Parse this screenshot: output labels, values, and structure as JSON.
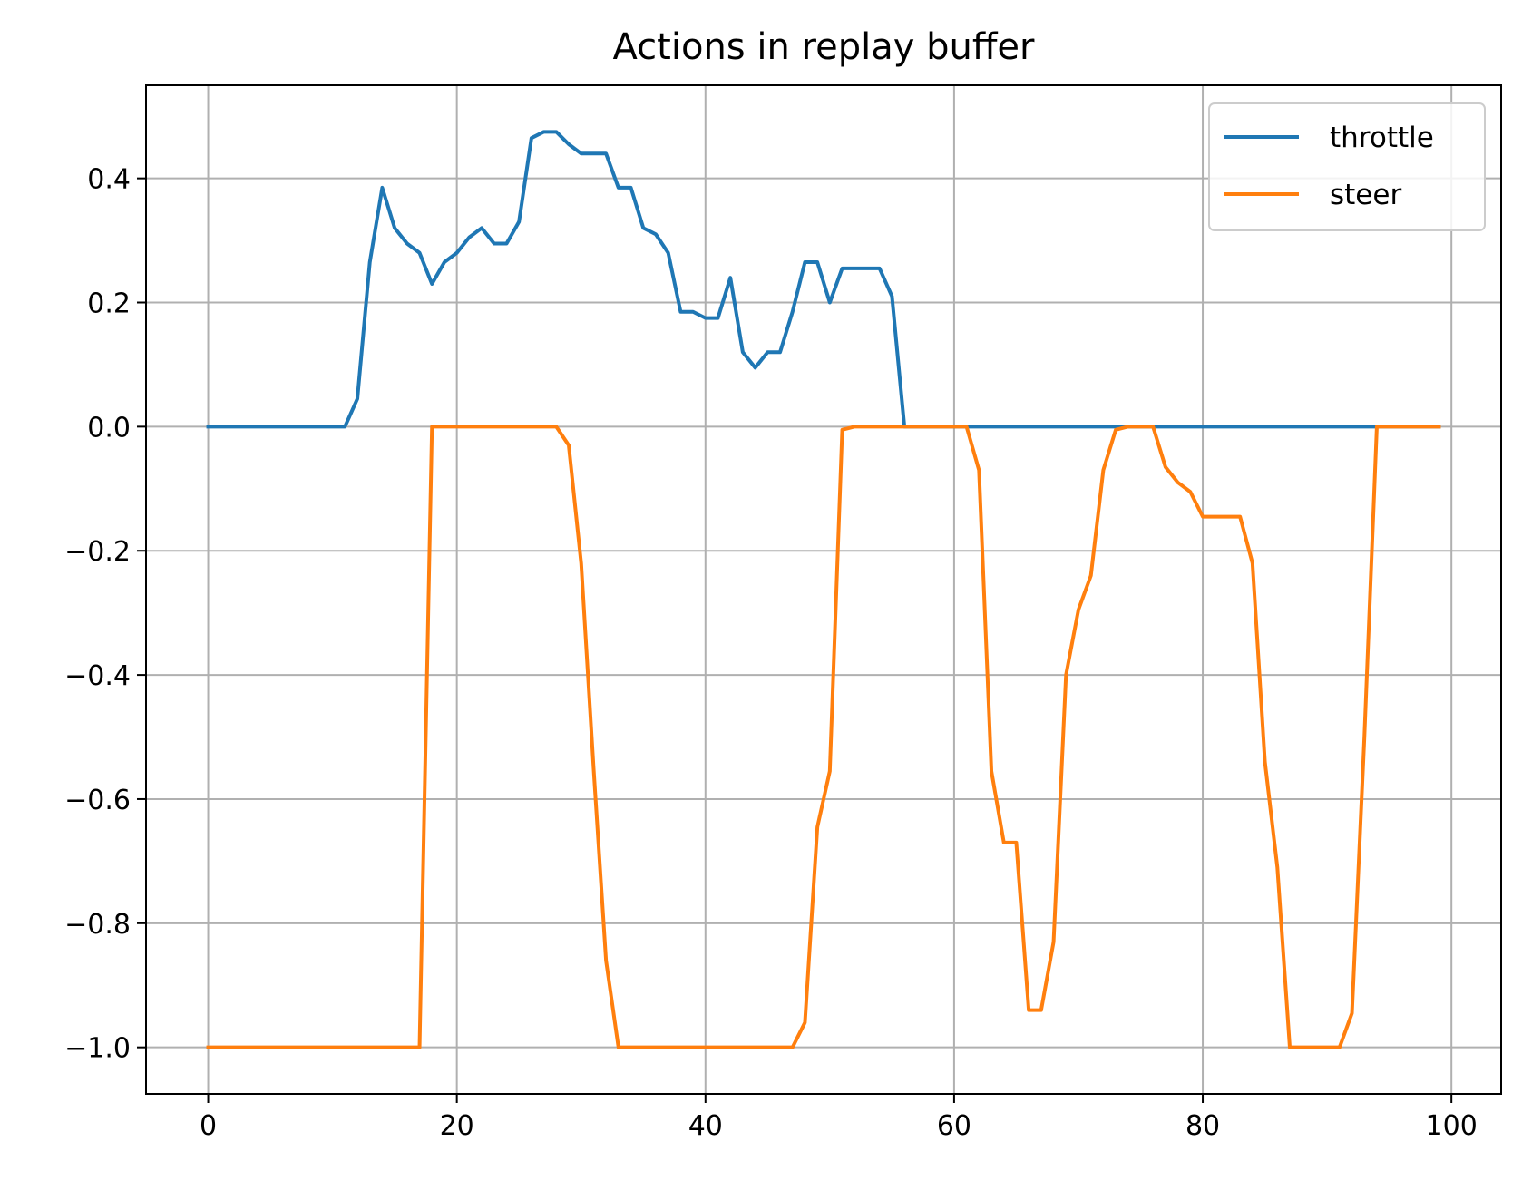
{
  "chart_data": {
    "type": "line",
    "title": "Actions in replay buffer",
    "xlabel": "",
    "ylabel": "",
    "xlim": [
      -5,
      104
    ],
    "ylim": [
      -1.075,
      0.55
    ],
    "xticks": [
      0,
      20,
      40,
      60,
      80,
      100
    ],
    "yticks": [
      0.4,
      0.2,
      0.0,
      -0.2,
      -0.4,
      -0.6,
      -0.8,
      -1.0
    ],
    "xtick_labels": [
      "0",
      "20",
      "40",
      "60",
      "80",
      "100"
    ],
    "ytick_labels": [
      "0.4",
      "0.2",
      "0.0",
      "−0.2",
      "−0.4",
      "−0.6",
      "−0.8",
      "−1.0"
    ],
    "grid": true,
    "legend_position": "top-right",
    "x": [
      0,
      1,
      2,
      3,
      4,
      5,
      6,
      7,
      8,
      9,
      10,
      11,
      12,
      13,
      14,
      15,
      16,
      17,
      18,
      19,
      20,
      21,
      22,
      23,
      24,
      25,
      26,
      27,
      28,
      29,
      30,
      31,
      32,
      33,
      34,
      35,
      36,
      37,
      38,
      39,
      40,
      41,
      42,
      43,
      44,
      45,
      46,
      47,
      48,
      49,
      50,
      51,
      52,
      53,
      54,
      55,
      56,
      57,
      58,
      59,
      60,
      61,
      62,
      63,
      64,
      65,
      66,
      67,
      68,
      69,
      70,
      71,
      72,
      73,
      74,
      75,
      76,
      77,
      78,
      79,
      80,
      81,
      82,
      83,
      84,
      85,
      86,
      87,
      88,
      89,
      90,
      91,
      92,
      93,
      94,
      95,
      96,
      97,
      98,
      99
    ],
    "series": [
      {
        "name": "throttle",
        "color": "#1f77b4",
        "values": [
          0,
          0,
          0,
          0,
          0,
          0,
          0,
          0,
          0,
          0,
          0,
          0,
          0.045,
          0.265,
          0.385,
          0.32,
          0.295,
          0.28,
          0.23,
          0.265,
          0.28,
          0.305,
          0.32,
          0.295,
          0.295,
          0.33,
          0.465,
          0.475,
          0.475,
          0.455,
          0.44,
          0.44,
          0.44,
          0.385,
          0.385,
          0.32,
          0.31,
          0.28,
          0.185,
          0.185,
          0.175,
          0.175,
          0.24,
          0.12,
          0.095,
          0.12,
          0.12,
          0.185,
          0.265,
          0.265,
          0.2,
          0.255,
          0.255,
          0.255,
          0.255,
          0.21,
          0,
          0,
          0,
          0,
          0,
          0,
          0,
          0,
          0,
          0,
          0,
          0,
          0,
          0,
          0,
          0,
          0,
          0,
          0,
          0,
          0,
          0,
          0,
          0,
          0,
          0,
          0,
          0,
          0,
          0,
          0,
          0,
          0,
          0,
          0,
          0,
          0,
          0,
          0,
          0,
          0,
          0,
          0,
          0
        ]
      },
      {
        "name": "steer",
        "color": "#ff7f0e",
        "values": [
          -1,
          -1,
          -1,
          -1,
          -1,
          -1,
          -1,
          -1,
          -1,
          -1,
          -1,
          -1,
          -1,
          -1,
          -1,
          -1,
          -1,
          -1,
          0,
          0,
          0,
          0,
          0,
          0,
          0,
          0,
          0,
          0,
          0,
          -0.03,
          -0.22,
          -0.55,
          -0.86,
          -1,
          -1,
          -1,
          -1,
          -1,
          -1,
          -1,
          -1,
          -1,
          -1,
          -1,
          -1,
          -1,
          -1,
          -1,
          -0.96,
          -0.645,
          -0.555,
          -0.005,
          0,
          0,
          0,
          0,
          0,
          0,
          0,
          0,
          0,
          0,
          -0.07,
          -0.555,
          -0.67,
          -0.67,
          -0.94,
          -0.94,
          -0.83,
          -0.4,
          -0.295,
          -0.24,
          -0.07,
          -0.005,
          0,
          0,
          0,
          -0.065,
          -0.09,
          -0.105,
          -0.145,
          -0.145,
          -0.145,
          -0.145,
          -0.22,
          -0.54,
          -0.71,
          -1,
          -1,
          -1,
          -1,
          -1,
          -0.945,
          -0.5,
          0,
          0,
          0,
          0,
          0,
          0
        ]
      }
    ]
  }
}
